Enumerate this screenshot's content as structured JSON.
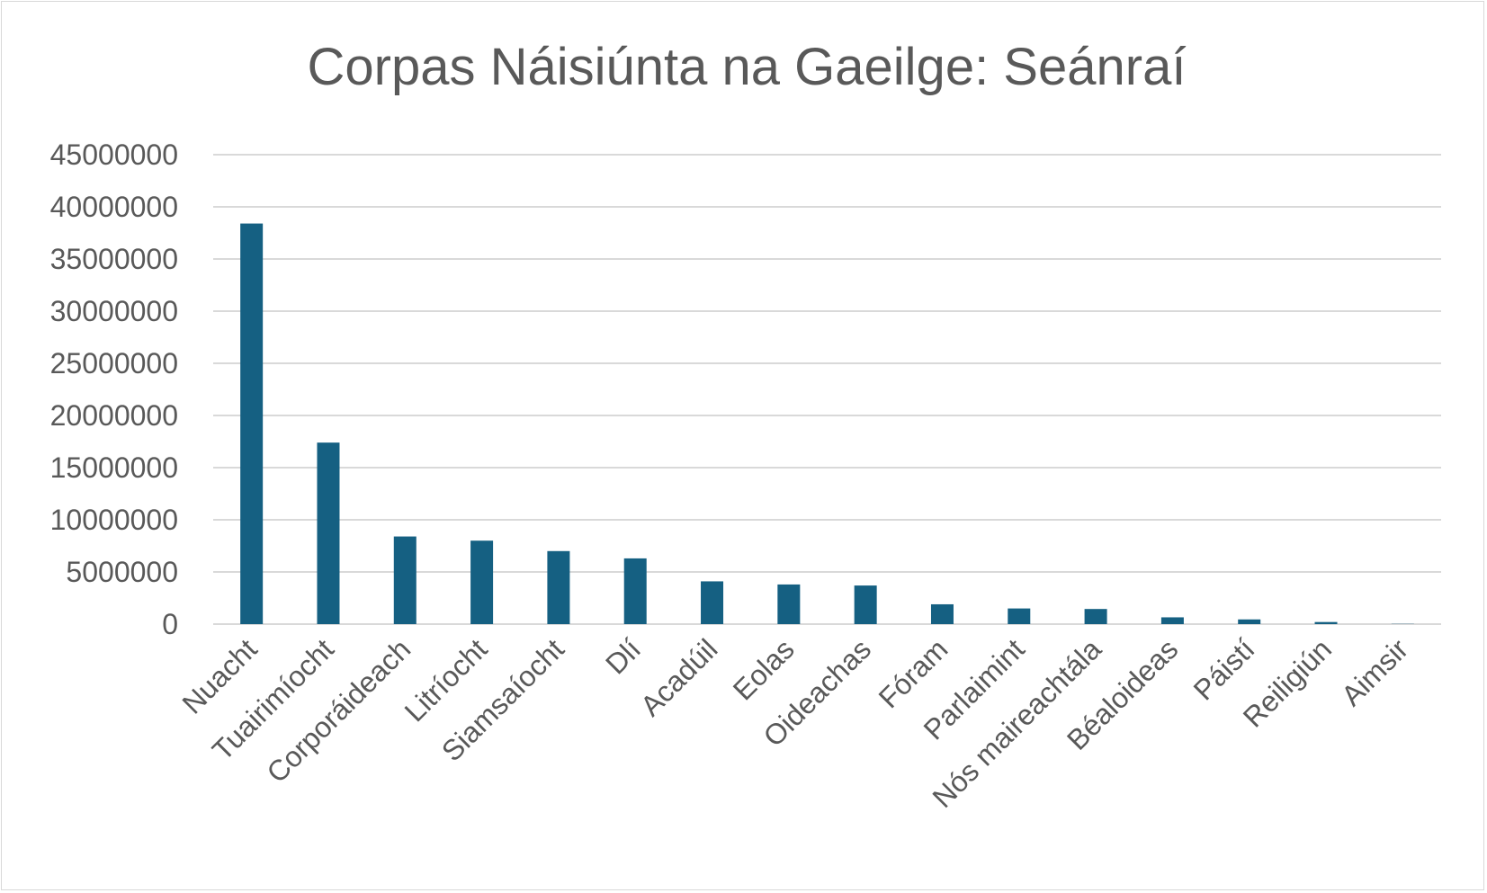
{
  "chart_data": {
    "type": "bar",
    "title": "Corpas Náisiúnta na Gaeilge: Seánraí",
    "xlabel": "",
    "ylabel": "",
    "categories": [
      "Nuacht",
      "Tuairimíocht",
      "Corporáideach",
      "Litríocht",
      "Siamsaíocht",
      "Dlí",
      "Acadúil",
      "Eolas",
      "Oideachas",
      "Fóram",
      "Parlaimint",
      "Nós maireachtála",
      "Béaloideas",
      "Páistí",
      "Reiligiún",
      "Aimsir"
    ],
    "values": [
      38400000,
      17400000,
      8400000,
      8000000,
      7000000,
      6300000,
      4100000,
      3800000,
      3700000,
      1900000,
      1500000,
      1450000,
      650000,
      450000,
      200000,
      20000
    ],
    "ylim": [
      0,
      45000000
    ],
    "yticks": [
      "0",
      "5000000",
      "10000000",
      "15000000",
      "20000000",
      "25000000",
      "30000000",
      "35000000",
      "40000000",
      "45000000"
    ],
    "grid": true,
    "legend": "none",
    "bar_color": "#156082"
  }
}
